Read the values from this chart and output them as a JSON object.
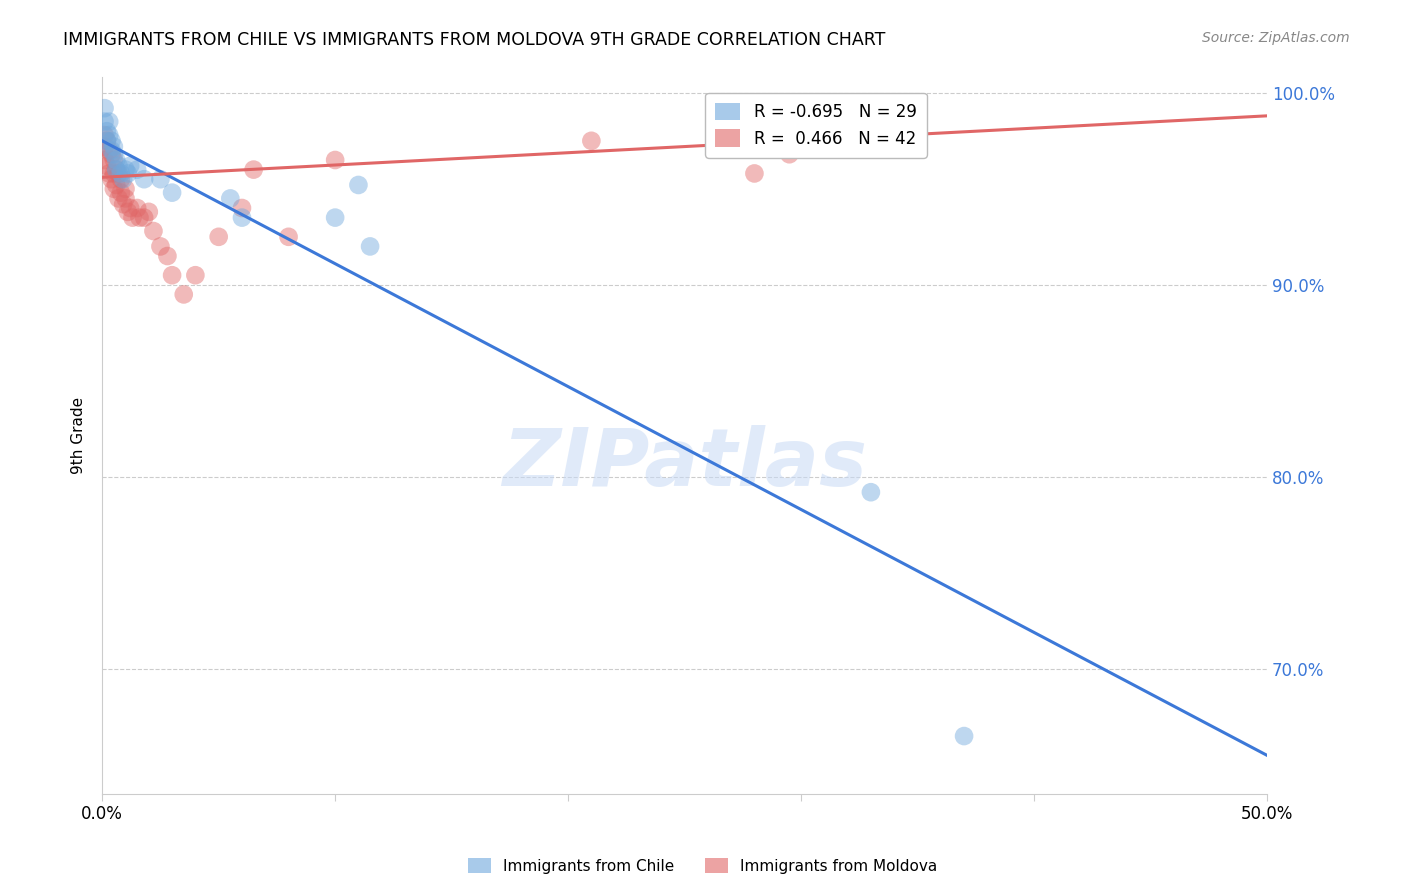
{
  "title": "IMMIGRANTS FROM CHILE VS IMMIGRANTS FROM MOLDOVA 9TH GRADE CORRELATION CHART",
  "source": "Source: ZipAtlas.com",
  "ylabel": "9th Grade",
  "xlim": [
    0.0,
    0.5
  ],
  "ylim": [
    0.635,
    1.008
  ],
  "xticks": [
    0.0,
    0.1,
    0.2,
    0.3,
    0.4,
    0.5
  ],
  "xtick_labels": [
    "0.0%",
    "",
    "",
    "",
    "",
    "50.0%"
  ],
  "yticks": [
    0.7,
    0.8,
    0.9,
    1.0
  ],
  "ytick_labels": [
    "70.0%",
    "80.0%",
    "90.0%",
    "100.0%"
  ],
  "chile_R": -0.695,
  "chile_N": 29,
  "moldova_R": 0.466,
  "moldova_N": 42,
  "chile_color": "#6fa8dc",
  "moldova_color": "#e06666",
  "chile_line_color": "#3c78d8",
  "moldova_line_color": "#e06666",
  "watermark": "ZIPatlas",
  "chile_line_x": [
    0.0,
    0.5
  ],
  "chile_line_y": [
    0.975,
    0.655
  ],
  "moldova_line_x": [
    0.0,
    0.5
  ],
  "moldova_line_y": [
    0.956,
    0.988
  ],
  "chile_points_x": [
    0.001,
    0.001,
    0.002,
    0.002,
    0.003,
    0.003,
    0.004,
    0.004,
    0.005,
    0.005,
    0.006,
    0.006,
    0.007,
    0.008,
    0.009,
    0.01,
    0.011,
    0.012,
    0.015,
    0.018,
    0.025,
    0.03,
    0.055,
    0.06,
    0.1,
    0.11,
    0.115,
    0.33,
    0.37
  ],
  "chile_points_y": [
    0.992,
    0.985,
    0.98,
    0.975,
    0.985,
    0.978,
    0.975,
    0.97,
    0.972,
    0.968,
    0.965,
    0.96,
    0.962,
    0.958,
    0.955,
    0.96,
    0.958,
    0.962,
    0.96,
    0.955,
    0.955,
    0.948,
    0.945,
    0.935,
    0.935,
    0.952,
    0.92,
    0.792,
    0.665
  ],
  "moldova_points_x": [
    0.001,
    0.001,
    0.001,
    0.002,
    0.002,
    0.003,
    0.003,
    0.004,
    0.004,
    0.005,
    0.005,
    0.005,
    0.006,
    0.006,
    0.007,
    0.007,
    0.008,
    0.008,
    0.009,
    0.01,
    0.01,
    0.011,
    0.012,
    0.013,
    0.015,
    0.016,
    0.018,
    0.02,
    0.022,
    0.025,
    0.028,
    0.03,
    0.035,
    0.04,
    0.05,
    0.06,
    0.065,
    0.08,
    0.1,
    0.21,
    0.28,
    0.295
  ],
  "moldova_points_y": [
    0.978,
    0.972,
    0.965,
    0.975,
    0.962,
    0.97,
    0.958,
    0.968,
    0.955,
    0.965,
    0.958,
    0.95,
    0.96,
    0.952,
    0.958,
    0.945,
    0.955,
    0.948,
    0.942,
    0.95,
    0.945,
    0.938,
    0.94,
    0.935,
    0.94,
    0.935,
    0.935,
    0.938,
    0.928,
    0.92,
    0.915,
    0.905,
    0.895,
    0.905,
    0.925,
    0.94,
    0.96,
    0.925,
    0.965,
    0.975,
    0.958,
    0.968
  ]
}
